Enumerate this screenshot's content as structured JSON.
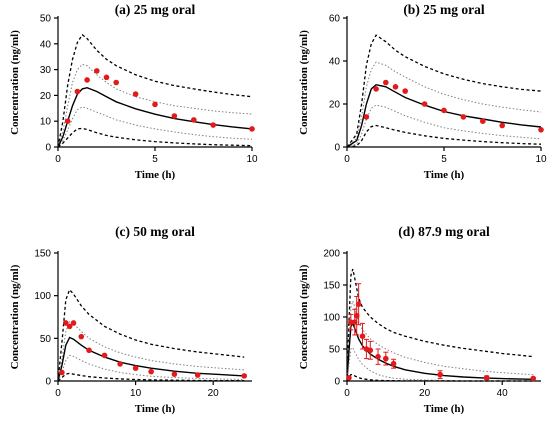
{
  "chart_data": [
    {
      "type": "line",
      "title": "(a) 25 mg oral",
      "xlabel": "Time (h)",
      "ylabel": "Concentration (ng/ml)",
      "xlim": [
        0,
        10
      ],
      "ylim": [
        0,
        50
      ],
      "xticks": [
        0,
        5,
        10
      ],
      "yticks": [
        0,
        10,
        20,
        30,
        40,
        50
      ],
      "grid": false,
      "series": [
        {
          "style": "dashed-outer",
          "color": "#000000",
          "x": [
            0,
            0.25,
            0.5,
            0.75,
            1,
            1.25,
            1.5,
            2,
            2.5,
            3,
            4,
            5,
            6,
            7,
            8,
            9,
            10
          ],
          "y": [
            0,
            10,
            24,
            34,
            40.5,
            43.5,
            42,
            37.5,
            34,
            31.5,
            28,
            25.5,
            23.8,
            22.5,
            21.3,
            20.3,
            19.5
          ]
        },
        {
          "style": "dotted-inner",
          "color": "#808080",
          "x": [
            0,
            0.25,
            0.5,
            0.75,
            1,
            1.25,
            1.5,
            2,
            2.5,
            3,
            4,
            5,
            6,
            7,
            8,
            9,
            10
          ],
          "y": [
            0,
            6,
            16,
            25,
            30,
            32,
            31.5,
            28,
            25,
            22.5,
            19.5,
            17.5,
            16,
            15,
            14,
            13.3,
            12.8
          ]
        },
        {
          "style": "solid-median",
          "color": "#000000",
          "x": [
            0,
            0.25,
            0.5,
            0.75,
            1,
            1.25,
            1.5,
            2,
            2.5,
            3,
            4,
            5,
            6,
            7,
            8,
            9,
            10
          ],
          "y": [
            0,
            4,
            10,
            16,
            20.5,
            22.5,
            23,
            21.5,
            19.5,
            17.5,
            14.8,
            12.7,
            11,
            9.8,
            8.7,
            7.8,
            7
          ]
        },
        {
          "style": "dotted-inner",
          "color": "#808080",
          "x": [
            0,
            0.25,
            0.5,
            0.75,
            1,
            1.25,
            1.5,
            2,
            2.5,
            3,
            4,
            5,
            6,
            7,
            8,
            9,
            10
          ],
          "y": [
            0,
            2.5,
            6.5,
            11,
            14.5,
            15.5,
            15,
            13.5,
            12,
            10.5,
            8.5,
            7,
            5.8,
            4.8,
            4,
            3.4,
            3
          ]
        },
        {
          "style": "dashed-outer",
          "color": "#000000",
          "x": [
            0,
            0.25,
            0.5,
            0.75,
            1,
            1.25,
            1.5,
            2,
            2.5,
            3,
            4,
            5,
            6,
            7,
            8,
            9,
            10
          ],
          "y": [
            0,
            1.5,
            3.5,
            5.5,
            7,
            7.2,
            6.8,
            5.5,
            4.5,
            3.8,
            2.8,
            2.1,
            1.6,
            1.2,
            0.9,
            0.7,
            0.5
          ]
        }
      ],
      "observed": {
        "color": "#e31a1c",
        "x": [
          0.5,
          1,
          1.5,
          2,
          2.5,
          3,
          4,
          5,
          6,
          7,
          8,
          10
        ],
        "y": [
          10,
          21.5,
          26,
          29.5,
          27,
          25,
          20.5,
          16.5,
          12,
          10.5,
          8.5,
          7
        ]
      }
    },
    {
      "type": "line",
      "title": "(b) 25 mg oral",
      "xlabel": "Time (h)",
      "ylabel": "Concentration (ng/ml)",
      "xlim": [
        0,
        10
      ],
      "ylim": [
        0,
        60
      ],
      "xticks": [
        0,
        5,
        10
      ],
      "yticks": [
        0,
        20,
        40,
        60
      ],
      "grid": false,
      "series": [
        {
          "style": "dashed-outer",
          "color": "#000000",
          "x": [
            0,
            0.5,
            0.75,
            1,
            1.25,
            1.5,
            2,
            2.5,
            3,
            4,
            5,
            6,
            7,
            8,
            9,
            10
          ],
          "y": [
            0,
            6,
            20,
            38,
            48,
            52,
            49,
            45,
            42,
            37.5,
            34,
            31.5,
            29.5,
            28,
            26.8,
            26
          ]
        },
        {
          "style": "dotted-inner",
          "color": "#808080",
          "x": [
            0,
            0.5,
            0.75,
            1,
            1.25,
            1.5,
            2,
            2.5,
            3,
            4,
            5,
            6,
            7,
            8,
            9,
            10
          ],
          "y": [
            0,
            4,
            14,
            28,
            36,
            39.5,
            38,
            35,
            32.5,
            28,
            24.5,
            22,
            20,
            18.5,
            17.3,
            16.3
          ]
        },
        {
          "style": "solid-median",
          "color": "#000000",
          "x": [
            0,
            0.5,
            0.75,
            1,
            1.25,
            1.5,
            2,
            2.5,
            3,
            4,
            5,
            6,
            7,
            8,
            9,
            10
          ],
          "y": [
            0,
            3,
            10,
            20,
            27,
            29,
            28,
            25.5,
            23,
            19.5,
            16.5,
            14.5,
            13,
            11.5,
            10.3,
            9.3
          ]
        },
        {
          "style": "dotted-inner",
          "color": "#808080",
          "x": [
            0,
            0.5,
            0.75,
            1,
            1.25,
            1.5,
            2,
            2.5,
            3,
            4,
            5,
            6,
            7,
            8,
            9,
            10
          ],
          "y": [
            0,
            1.5,
            6,
            13,
            18,
            19.5,
            18.5,
            16.5,
            14.5,
            11.5,
            9,
            7.5,
            6.3,
            5.3,
            4.5,
            3.8
          ]
        },
        {
          "style": "dashed-outer",
          "color": "#000000",
          "x": [
            0,
            0.5,
            0.75,
            1,
            1.25,
            1.5,
            2,
            2.5,
            3,
            4,
            5,
            6,
            7,
            8,
            9,
            10
          ],
          "y": [
            0,
            0.5,
            3,
            7,
            9.5,
            10,
            9,
            7.8,
            6.8,
            5.2,
            4,
            3.2,
            2.5,
            2,
            1.6,
            1.3
          ]
        }
      ],
      "observed": {
        "color": "#e31a1c",
        "x": [
          1,
          1.5,
          2,
          2.5,
          3,
          4,
          5,
          6,
          7,
          8,
          10
        ],
        "y": [
          14,
          27,
          30,
          28,
          26,
          20,
          17,
          14,
          12,
          10,
          8
        ]
      }
    },
    {
      "type": "line",
      "title": "(c) 50 mg oral",
      "xlabel": "Time (h)",
      "ylabel": "Concentration (ng/ml)",
      "xlim": [
        0,
        25
      ],
      "ylim": [
        0,
        150
      ],
      "xticks": [
        0,
        10,
        20
      ],
      "yticks": [
        0,
        50,
        100,
        150
      ],
      "grid": false,
      "series": [
        {
          "style": "dashed-outer",
          "color": "#000000",
          "x": [
            0,
            0.5,
            1,
            1.5,
            2,
            3,
            4,
            6,
            8,
            10,
            12,
            15,
            18,
            21,
            24
          ],
          "y": [
            0,
            45,
            95,
            107,
            102,
            88,
            78,
            64,
            55,
            48,
            43,
            38,
            34,
            31,
            28
          ]
        },
        {
          "style": "dotted-inner",
          "color": "#808080",
          "x": [
            0,
            0.5,
            1,
            1.5,
            2,
            3,
            4,
            6,
            8,
            10,
            12,
            15,
            18,
            21,
            24
          ],
          "y": [
            0,
            25,
            58,
            70,
            67,
            58,
            50,
            40,
            33,
            28,
            24,
            20,
            17,
            15,
            13
          ]
        },
        {
          "style": "solid-median",
          "color": "#000000",
          "x": [
            0,
            0.5,
            1,
            1.5,
            2,
            3,
            4,
            6,
            8,
            10,
            12,
            15,
            18,
            21,
            24
          ],
          "y": [
            0,
            18,
            42,
            51,
            49,
            42,
            36,
            28,
            22,
            18,
            15,
            11.5,
            9,
            7.5,
            6
          ]
        },
        {
          "style": "dotted-inner",
          "color": "#808080",
          "x": [
            0,
            0.5,
            1,
            1.5,
            2,
            3,
            4,
            6,
            8,
            10,
            12,
            15,
            18,
            21,
            24
          ],
          "y": [
            0,
            10,
            24,
            30,
            29,
            24,
            20,
            14,
            10,
            7.5,
            5.5,
            4,
            3,
            2.3,
            1.8
          ]
        },
        {
          "style": "dashed-outer",
          "color": "#000000",
          "x": [
            0,
            0.5,
            1,
            1.5,
            2,
            3,
            4,
            6,
            8,
            10,
            12,
            15,
            18,
            21,
            24
          ],
          "y": [
            0,
            4,
            8,
            9,
            8,
            6.5,
            5,
            3.5,
            2.5,
            1.8,
            1.3,
            0.9,
            0.6,
            0.4,
            0.3
          ]
        }
      ],
      "observed": {
        "color": "#e31a1c",
        "x": [
          0.5,
          1,
          1.5,
          2,
          3,
          4,
          6,
          8,
          10,
          12,
          15,
          18,
          24
        ],
        "y": [
          10,
          68,
          64,
          68,
          52,
          36,
          30,
          20,
          15,
          11,
          8,
          7,
          6
        ]
      }
    },
    {
      "type": "line",
      "title": "(d) 87.9 mg oral",
      "xlabel": "Time (h)",
      "ylabel": "Concentration (ng/ml)",
      "xlim": [
        0,
        50
      ],
      "ylim": [
        0,
        200
      ],
      "xticks": [
        0,
        20,
        40
      ],
      "yticks": [
        0,
        50,
        100,
        150,
        200
      ],
      "grid": false,
      "series": [
        {
          "style": "dashed-outer",
          "color": "#000000",
          "x": [
            0,
            0.5,
            1,
            1.5,
            2,
            3,
            4,
            6,
            8,
            10,
            12,
            15,
            20,
            25,
            30,
            35,
            40,
            45,
            48
          ],
          "y": [
            0,
            90,
            165,
            175,
            160,
            130,
            115,
            100,
            90,
            82,
            76,
            70,
            62,
            56,
            51,
            47,
            43,
            40,
            38
          ]
        },
        {
          "style": "dotted-inner",
          "color": "#808080",
          "x": [
            0,
            0.5,
            1,
            1.5,
            2,
            3,
            4,
            6,
            8,
            10,
            12,
            15,
            20,
            25,
            30,
            35,
            40,
            45,
            48
          ],
          "y": [
            0,
            60,
            115,
            125,
            115,
            92,
            80,
            66,
            57,
            50,
            44,
            37,
            29,
            23,
            19,
            15.5,
            13,
            11,
            10
          ]
        },
        {
          "style": "solid-median",
          "color": "#000000",
          "x": [
            0,
            0.5,
            1,
            1.5,
            2,
            3,
            4,
            6,
            8,
            10,
            12,
            15,
            20,
            25,
            30,
            35,
            40,
            45,
            48
          ],
          "y": [
            0,
            45,
            85,
            90,
            82,
            66,
            55,
            42,
            34,
            28,
            23,
            17.5,
            12,
            8.5,
            6.3,
            4.8,
            3.8,
            3,
            2.6
          ]
        },
        {
          "style": "dotted-inner",
          "color": "#808080",
          "x": [
            0,
            0.5,
            1,
            1.5,
            2,
            3,
            4,
            6,
            8,
            10,
            12,
            15,
            20,
            25,
            30,
            35,
            40,
            45,
            48
          ],
          "y": [
            0,
            25,
            50,
            52,
            45,
            34,
            26,
            16,
            10,
            6.5,
            4.5,
            2.8,
            1.5,
            0.9,
            0.6,
            0.4,
            0.3,
            0.2,
            0.2
          ]
        },
        {
          "style": "dashed-outer",
          "color": "#000000",
          "x": [
            0,
            0.5,
            1,
            1.5,
            2,
            3,
            4,
            6,
            8,
            10,
            12,
            15,
            20,
            25,
            30,
            35,
            40,
            45,
            48
          ],
          "y": [
            0,
            5,
            10,
            10,
            8,
            5,
            3.5,
            1.8,
            1,
            0.6,
            0.4,
            0.2,
            0.1,
            0.1,
            0,
            0,
            0,
            0,
            0
          ]
        }
      ],
      "observed": {
        "color": "#e31a1c",
        "x": [
          0.5,
          1,
          2,
          2.5,
          3,
          4,
          5,
          6,
          8,
          10,
          12,
          24,
          36,
          48
        ],
        "y": [
          5,
          92,
          92,
          102,
          120,
          70,
          50,
          48,
          38,
          35,
          27,
          10,
          5,
          4
        ],
        "err": [
          0,
          12,
          20,
          30,
          32,
          20,
          15,
          14,
          12,
          10,
          7,
          6,
          3,
          1
        ]
      }
    }
  ]
}
